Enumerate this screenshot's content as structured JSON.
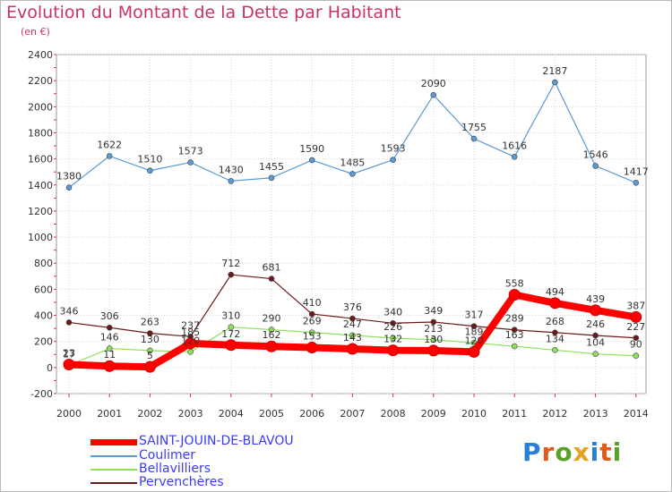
{
  "title": "Evolution du Montant de la Dette par Habitant",
  "subtitle": "(en €)",
  "logo_text": "Proxiti",
  "chart_data": {
    "type": "line",
    "x": [
      "2000",
      "2001",
      "2002",
      "2003",
      "2004",
      "2005",
      "2006",
      "2007",
      "2008",
      "2009",
      "2010",
      "2011",
      "2012",
      "2013",
      "2014"
    ],
    "ylim": [
      -200,
      2400
    ],
    "yticks": [
      -200,
      0,
      200,
      400,
      600,
      800,
      1000,
      1200,
      1400,
      1600,
      1800,
      2000,
      2200,
      2400
    ],
    "grid": true,
    "legend_position": "bottom-left",
    "series": [
      {
        "name": "SAINT-JOUIN-DE-BLAVOU",
        "color": "#ff0000",
        "values": [
          23,
          11,
          5,
          185,
          172,
          162,
          153,
          143,
          132,
          130,
          120,
          558,
          494,
          439,
          387
        ]
      },
      {
        "name": "Coulimer",
        "color": "#5a9bd4",
        "values": [
          1380,
          1622,
          1510,
          1573,
          1430,
          1455,
          1590,
          1485,
          1593,
          2090,
          1755,
          1616,
          2187,
          1546,
          1417
        ]
      },
      {
        "name": "Bellavilliers",
        "color": "#8ee05a",
        "values": [
          17,
          146,
          130,
          120,
          310,
          290,
          269,
          247,
          226,
          213,
          189,
          163,
          134,
          104,
          90
        ]
      },
      {
        "name": "Pervenchères",
        "color": "#6b1a1a",
        "values": [
          346,
          306,
          263,
          237,
          712,
          681,
          410,
          376,
          340,
          349,
          317,
          289,
          268,
          246,
          227
        ]
      }
    ]
  }
}
